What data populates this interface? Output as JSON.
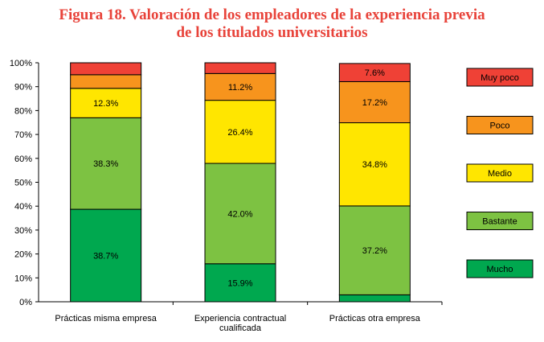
{
  "chart_data": {
    "type": "stacked-bar-100",
    "title_line1": "Figura 18. Valoración de los empleadores de la experiencia previa",
    "title_line2": "de los titulados universitarios",
    "categories": [
      [
        "Prácticas misma empresa"
      ],
      [
        "Experiencia contractual",
        "cualificada"
      ],
      [
        "Prácticas otra empresa"
      ]
    ],
    "ylim": [
      0,
      100
    ],
    "yticks": [
      "0%",
      "10%",
      "20%",
      "30%",
      "40%",
      "50%",
      "60%",
      "70%",
      "80%",
      "90%",
      "100%"
    ],
    "series": [
      {
        "name": "Mucho",
        "color": "#00a84f",
        "values": [
          38.7,
          15.9,
          2.9
        ],
        "labels": [
          "38.7%",
          "15.9%",
          ""
        ]
      },
      {
        "name": "Bastante",
        "color": "#7dc242",
        "values": [
          38.3,
          42.0,
          37.2
        ],
        "labels": [
          "38.3%",
          "42.0%",
          "37.2%"
        ]
      },
      {
        "name": "Medio",
        "color": "#ffe600",
        "values": [
          12.3,
          26.4,
          34.8
        ],
        "labels": [
          "12.3%",
          "26.4%",
          "34.8%"
        ]
      },
      {
        "name": "Poco",
        "color": "#f7941d",
        "values": [
          5.7,
          11.2,
          17.2
        ],
        "labels": [
          "",
          "11.2%",
          "17.2%"
        ]
      },
      {
        "name": "Muy poco",
        "color": "#ef4136",
        "values": [
          5.0,
          4.5,
          7.6
        ],
        "labels": [
          "",
          "",
          "7.6%"
        ]
      }
    ],
    "legend_order": [
      "Muy poco",
      "Poco",
      "Medio",
      "Bastante",
      "Mucho"
    ],
    "legend_position": "right",
    "grid": false
  }
}
